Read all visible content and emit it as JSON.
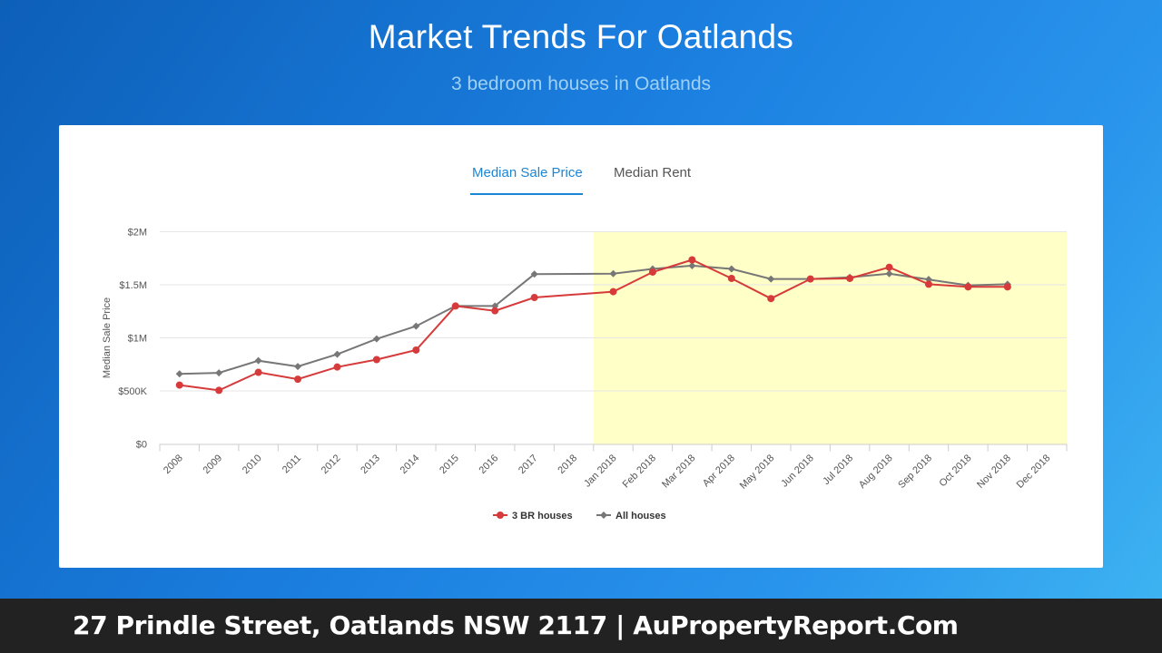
{
  "header": {
    "title": "Market Trends For Oatlands",
    "subtitle": "3 bedroom houses in Oatlands"
  },
  "tabs": [
    {
      "label": "Median Sale Price",
      "active": true
    },
    {
      "label": "Median Rent",
      "active": false
    }
  ],
  "colors": {
    "accent": "#1a86d6",
    "series_3br": "#d63a3a",
    "series_all": "#777777",
    "highlight_band": "#ffffc8"
  },
  "chart_data": {
    "type": "line",
    "ylabel": "Median Sale Price",
    "ylim": [
      0,
      2000000
    ],
    "yticks": [
      {
        "value": 0,
        "label": "$0"
      },
      {
        "value": 500000,
        "label": "$500K"
      },
      {
        "value": 1000000,
        "label": "$1M"
      },
      {
        "value": 1500000,
        "label": "$1.5M"
      },
      {
        "value": 2000000,
        "label": "$2M"
      }
    ],
    "categories": [
      "2008",
      "2009",
      "2010",
      "2011",
      "2012",
      "2013",
      "2014",
      "2015",
      "2016",
      "2017",
      "2018",
      "Jan 2018",
      "Feb 2018",
      "Mar 2018",
      "Apr 2018",
      "May 2018",
      "Jun 2018",
      "Jul 2018",
      "Aug 2018",
      "Sep 2018",
      "Oct 2018",
      "Nov 2018",
      "Dec 2018"
    ],
    "highlight_range": [
      "Jan 2018",
      "Dec 2018"
    ],
    "legend_position": "bottom",
    "grid": true,
    "series": [
      {
        "name": "3 BR houses",
        "marker": "circle",
        "values": [
          555000,
          505000,
          675000,
          610000,
          725000,
          795000,
          885000,
          1300000,
          1255000,
          1380000,
          null,
          1435000,
          1620000,
          1735000,
          1560000,
          1370000,
          1555000,
          1560000,
          1665000,
          1505000,
          1480000,
          1480000,
          null
        ]
      },
      {
        "name": "All houses",
        "marker": "diamond",
        "values": [
          660000,
          670000,
          785000,
          730000,
          845000,
          990000,
          1110000,
          1300000,
          1300000,
          1600000,
          null,
          1605000,
          1650000,
          1680000,
          1650000,
          1555000,
          1555000,
          1570000,
          1605000,
          1550000,
          1495000,
          1505000,
          null
        ]
      }
    ]
  },
  "footer": {
    "text": "27 Prindle Street, Oatlands NSW 2117 | AuPropertyReport.Com"
  }
}
